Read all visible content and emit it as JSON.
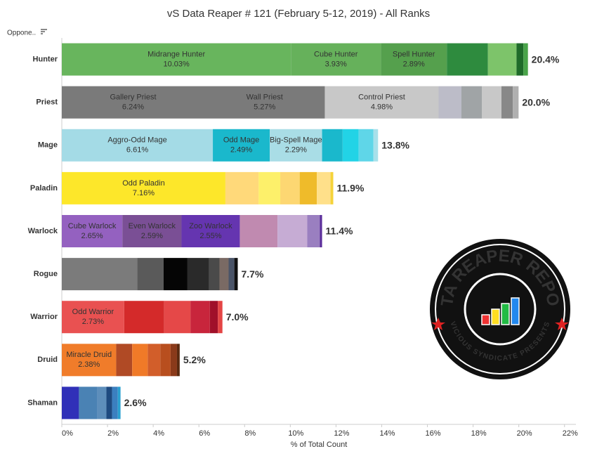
{
  "chart_data": {
    "type": "stacked-bar",
    "title": "vS Data Reaper # 121 (February 5-12, 2019) - All Ranks",
    "row_header": "Oppone..",
    "xlabel": "% of Total Count",
    "xlim": [
      0,
      22.5
    ],
    "xticks": [
      {
        "value": 0,
        "label": "0%"
      },
      {
        "value": 2,
        "label": "2%"
      },
      {
        "value": 4,
        "label": "4%"
      },
      {
        "value": 6,
        "label": "6%"
      },
      {
        "value": 8,
        "label": "8%"
      },
      {
        "value": 10,
        "label": "10%"
      },
      {
        "value": 12,
        "label": "12%"
      },
      {
        "value": 14,
        "label": "14%"
      },
      {
        "value": 16,
        "label": "16%"
      },
      {
        "value": 18,
        "label": "18%"
      },
      {
        "value": 20,
        "label": "20%"
      },
      {
        "value": 22,
        "label": "22%"
      }
    ],
    "rows": [
      {
        "class": "Hunter",
        "total": 20.4,
        "total_label": "20.4%",
        "segments": [
          {
            "name": "Midrange Hunter",
            "value": 10.03,
            "label": "10.03%",
            "color": "#68b55d"
          },
          {
            "name": "Cube Hunter",
            "value": 3.93,
            "label": "3.93%",
            "color": "#66b15b"
          },
          {
            "name": "Spell Hunter",
            "value": 2.89,
            "label": "2.89%",
            "color": "#55a04d"
          },
          {
            "value": 1.8,
            "color": "#2e8b3e"
          },
          {
            "value": 1.25,
            "color": "#7dc46a"
          },
          {
            "value": 0.3,
            "color": "#1f6b2a"
          },
          {
            "value": 0.2,
            "color": "#49a449"
          }
        ]
      },
      {
        "class": "Priest",
        "total": 20.0,
        "total_label": "20.0%",
        "segments": [
          {
            "name": "Gallery Priest",
            "value": 6.24,
            "label": "6.24%",
            "color": "#7a7a7a"
          },
          {
            "name": "Wall Priest",
            "value": 5.27,
            "label": "5.27%",
            "color": "#7a7a7a"
          },
          {
            "name": "Control Priest",
            "value": 4.98,
            "label": "4.98%",
            "color": "#c8c8c8"
          },
          {
            "value": 1.0,
            "color": "#bcbcc8"
          },
          {
            "value": 0.9,
            "color": "#a0a4a6"
          },
          {
            "value": 0.85,
            "color": "#c8c8c8"
          },
          {
            "value": 0.5,
            "color": "#888888"
          },
          {
            "value": 0.25,
            "color": "#b0b0b0"
          }
        ]
      },
      {
        "class": "Mage",
        "total": 13.8,
        "total_label": "13.8%",
        "segments": [
          {
            "name": "Aggro-Odd Mage",
            "value": 6.61,
            "label": "6.61%",
            "color": "#a4dbe6"
          },
          {
            "name": "Odd Mage",
            "value": 2.49,
            "label": "2.49%",
            "color": "#1ab8cc"
          },
          {
            "name": "Big-Spell Mage",
            "value": 2.29,
            "label": "2.29%",
            "color": "#a9dde6"
          },
          {
            "value": 0.9,
            "color": "#1ab8cc"
          },
          {
            "value": 0.7,
            "color": "#22d3e6"
          },
          {
            "value": 0.65,
            "color": "#5fd6e8"
          },
          {
            "value": 0.2,
            "color": "#a7e0ea"
          }
        ]
      },
      {
        "class": "Paladin",
        "total": 11.9,
        "total_label": "11.9%",
        "segments": [
          {
            "name": "Odd Paladin",
            "value": 7.16,
            "label": "7.16%",
            "color": "#fde72a"
          },
          {
            "value": 1.45,
            "color": "#ffd97a"
          },
          {
            "value": 0.95,
            "color": "#fdf06a"
          },
          {
            "value": 0.85,
            "color": "#fdd772"
          },
          {
            "value": 0.75,
            "color": "#efbb2a"
          },
          {
            "value": 0.6,
            "color": "#ffe08a"
          },
          {
            "value": 0.12,
            "color": "#f5d33a"
          }
        ]
      },
      {
        "class": "Warlock",
        "total": 11.4,
        "total_label": "11.4%",
        "segments": [
          {
            "name": "Cube Warlock",
            "value": 2.65,
            "label": "2.65%",
            "color": "#9461c0"
          },
          {
            "name": "Even Warlock",
            "value": 2.59,
            "label": "2.59%",
            "color": "#7a4f95"
          },
          {
            "name": "Zoo Warlock",
            "value": 2.55,
            "label": "2.55%",
            "color": "#6535b0"
          },
          {
            "value": 1.65,
            "color": "#c08ab0"
          },
          {
            "value": 1.3,
            "color": "#c6acd4"
          },
          {
            "value": 0.55,
            "color": "#9a7fc0"
          },
          {
            "value": 0.1,
            "color": "#5a2d9a"
          }
        ]
      },
      {
        "class": "Rogue",
        "total": 7.7,
        "total_label": "7.7%",
        "segments": [
          {
            "value": 3.3,
            "color": "#7b7b7b"
          },
          {
            "value": 1.15,
            "color": "#5a5a5a"
          },
          {
            "value": 1.05,
            "color": "#050505"
          },
          {
            "value": 0.95,
            "color": "#2a2a2a"
          },
          {
            "value": 0.45,
            "color": "#4a4a4a"
          },
          {
            "value": 0.4,
            "color": "#7a6a64"
          },
          {
            "value": 0.25,
            "color": "#4a5468"
          },
          {
            "value": 0.15,
            "color": "#111111"
          }
        ]
      },
      {
        "class": "Warrior",
        "total": 7.0,
        "total_label": "7.0%",
        "segments": [
          {
            "name": "Odd Warrior",
            "value": 2.73,
            "label": "2.73%",
            "color": "#e95151"
          },
          {
            "value": 1.75,
            "color": "#d42a2a"
          },
          {
            "value": 1.15,
            "color": "#e54848"
          },
          {
            "value": 0.85,
            "color": "#c8253c"
          },
          {
            "value": 0.35,
            "color": "#a0102a"
          },
          {
            "value": 0.2,
            "color": "#e44545"
          }
        ]
      },
      {
        "class": "Druid",
        "total": 5.2,
        "total_label": "5.2%",
        "segments": [
          {
            "name": "Miracle Druid",
            "value": 2.38,
            "label": "2.38%",
            "color": "#f07c2a"
          },
          {
            "value": 0.7,
            "color": "#b04a25"
          },
          {
            "value": 0.68,
            "color": "#f07a28"
          },
          {
            "value": 0.55,
            "color": "#d25e2a"
          },
          {
            "value": 0.45,
            "color": "#b84e1e"
          },
          {
            "value": 0.28,
            "color": "#8a3a1a"
          },
          {
            "value": 0.12,
            "color": "#5a2a10"
          }
        ]
      },
      {
        "class": "Shaman",
        "total": 2.6,
        "total_label": "2.6%",
        "segments": [
          {
            "value": 0.75,
            "color": "#3030b8"
          },
          {
            "value": 0.8,
            "color": "#4a82b4"
          },
          {
            "value": 0.4,
            "color": "#5d8ebb"
          },
          {
            "value": 0.25,
            "color": "#1e4a80"
          },
          {
            "value": 0.25,
            "color": "#3b7fc0"
          },
          {
            "value": 0.12,
            "color": "#2aa0d0"
          }
        ]
      }
    ],
    "logo": {
      "title": "DATA REAPER REPORT",
      "subtitle": "VICIOUS SYNDICATE PRESENTS"
    }
  }
}
